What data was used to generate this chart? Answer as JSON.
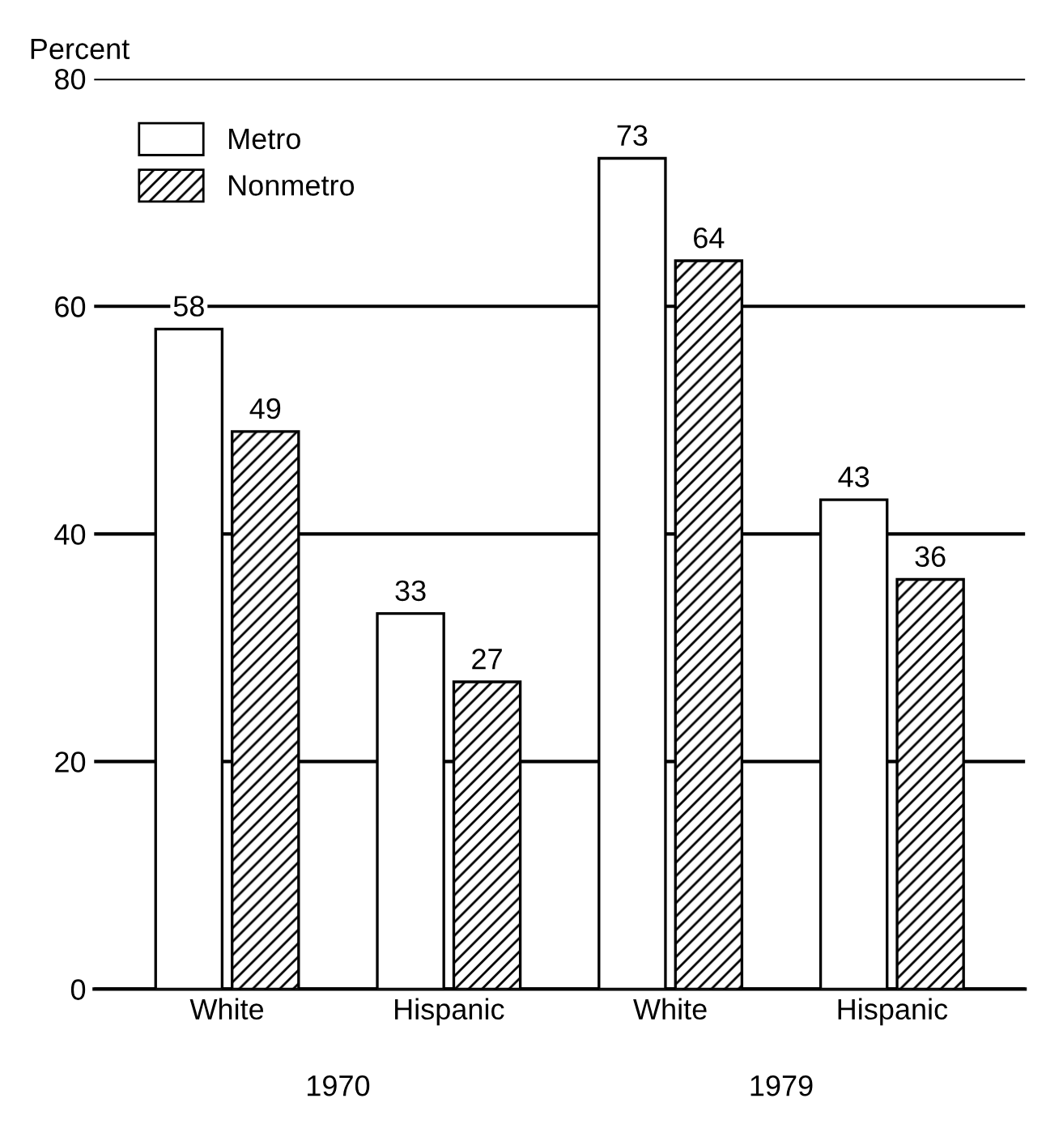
{
  "chart_data": {
    "type": "bar",
    "ylabel": "Percent",
    "categories": [
      "White",
      "Hispanic",
      "White",
      "Hispanic"
    ],
    "series": [
      {
        "name": "Metro",
        "color": "#ffffff",
        "values": [
          58,
          33,
          73,
          43
        ]
      },
      {
        "name": "Nonmetro",
        "color": "#000000",
        "values": [
          49,
          27,
          64,
          36
        ]
      }
    ],
    "ylim": [
      0,
      80
    ],
    "yticks": [
      0,
      20,
      40,
      60,
      80
    ],
    "grid": "y",
    "legend": "top left",
    "data_labels": true,
    "annotations": [
      "1970",
      "1979"
    ]
  }
}
